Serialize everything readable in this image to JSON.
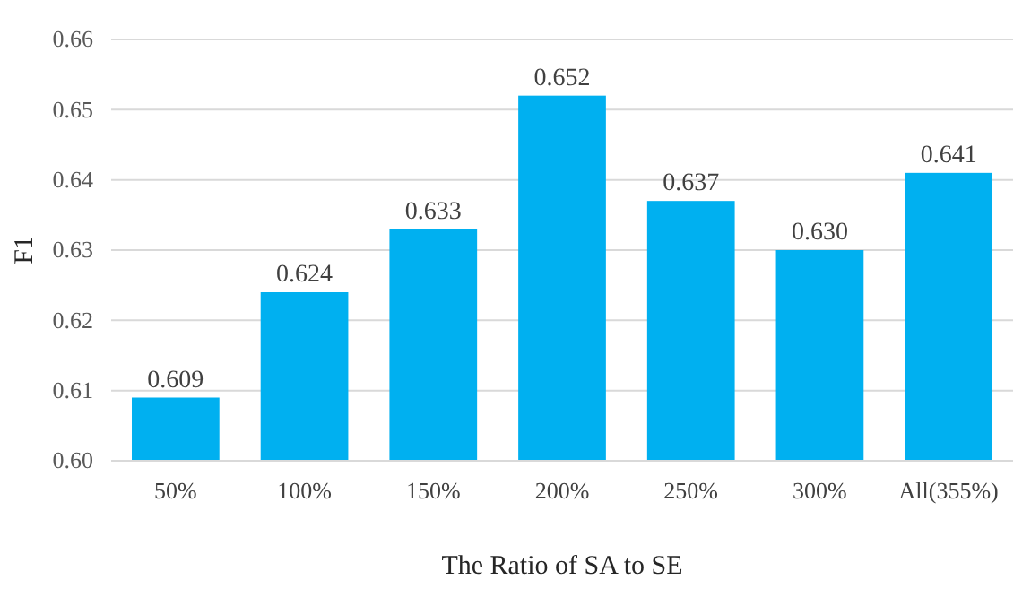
{
  "chart_data": {
    "type": "bar",
    "xlabel": "The Ratio of SA to SE",
    "ylabel": "F1",
    "categories": [
      "50%",
      "100%",
      "150%",
      "200%",
      "250%",
      "300%",
      "All(355%)"
    ],
    "values": [
      0.609,
      0.624,
      0.633,
      0.652,
      0.637,
      0.63,
      0.641
    ],
    "value_labels": [
      "0.609",
      "0.624",
      "0.633",
      "0.652",
      "0.637",
      "0.630",
      "0.641"
    ],
    "color": "#00b0f0",
    "ylim": [
      0.6,
      0.66
    ],
    "yticks": [
      {
        "value": 0.6,
        "label": "0.60"
      },
      0.61,
      0.62,
      0.63,
      0.64,
      0.65,
      0.66
    ],
    "grid": "y"
  }
}
